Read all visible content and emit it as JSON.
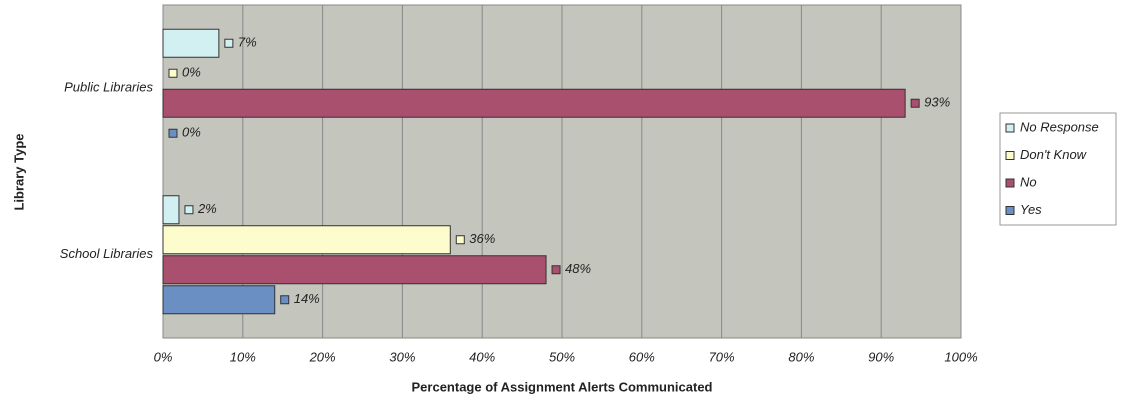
{
  "chart_data": {
    "type": "hbar",
    "x_label": "Percentage of Assignment Alerts Communicated",
    "y_label": "Library Type",
    "categories": [
      "Public Libraries",
      "School Libraries"
    ],
    "series": [
      {
        "name": "No Response",
        "color": "#d2f0f2",
        "values": [
          7,
          2
        ],
        "value_labels": [
          "7%",
          "2%"
        ]
      },
      {
        "name": "Don't Know",
        "color": "#fdfccc",
        "values": [
          0,
          36
        ],
        "value_labels": [
          "0%",
          "36%"
        ]
      },
      {
        "name": "No",
        "color": "#a9506f",
        "values": [
          93,
          48
        ],
        "value_labels": [
          "93%",
          "48%"
        ]
      },
      {
        "name": "Yes",
        "color": "#6a8fc3",
        "values": [
          0,
          14
        ],
        "value_labels": [
          "0%",
          "14%"
        ]
      }
    ],
    "xlim": [
      0,
      100
    ],
    "xticks": [
      {
        "value": 0,
        "label": "0%"
      },
      {
        "value": 10,
        "label": "10%"
      },
      {
        "value": 20,
        "label": "20%"
      },
      {
        "value": 30,
        "label": "30%"
      },
      {
        "value": 40,
        "label": "40%"
      },
      {
        "value": 50,
        "label": "50%"
      },
      {
        "value": 60,
        "label": "60%"
      },
      {
        "value": 70,
        "label": "70%"
      },
      {
        "value": 80,
        "label": "80%"
      },
      {
        "value": 90,
        "label": "90%"
      },
      {
        "value": 100,
        "label": "100%"
      }
    ],
    "grid": true,
    "legend": "right"
  }
}
